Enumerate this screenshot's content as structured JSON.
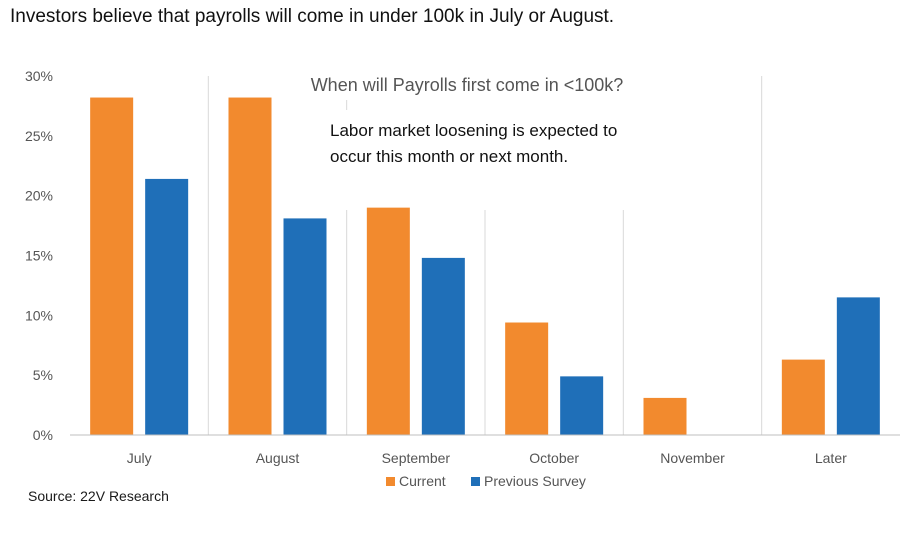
{
  "headline": "Investors believe that payrolls will come in under 100k in July or August.",
  "source": "Source: 22V Research",
  "colors": {
    "current": "#F28A2E",
    "previous": "#1F6FB8",
    "grid": "#d9d9d9",
    "axis": "#bfbfbf"
  },
  "chart_data": {
    "type": "bar",
    "title": "When will Payrolls first come in <100k?",
    "annotation_lines": [
      "Labor market loosening is expected to",
      "occur this month or next month."
    ],
    "categories": [
      "July",
      "August",
      "September",
      "October",
      "November",
      "Later"
    ],
    "series": [
      {
        "name": "Current",
        "values": [
          28.2,
          28.2,
          19.0,
          9.4,
          3.1,
          6.3
        ]
      },
      {
        "name": "Previous Survey",
        "values": [
          21.4,
          18.1,
          14.8,
          4.9,
          0,
          11.5
        ]
      }
    ],
    "yticks": [
      "0%",
      "5%",
      "10%",
      "15%",
      "20%",
      "25%",
      "30%"
    ],
    "ylim": [
      0,
      30
    ],
    "xlabel": "",
    "ylabel": "",
    "legend_position": "bottom",
    "grid": "vertical separators"
  }
}
